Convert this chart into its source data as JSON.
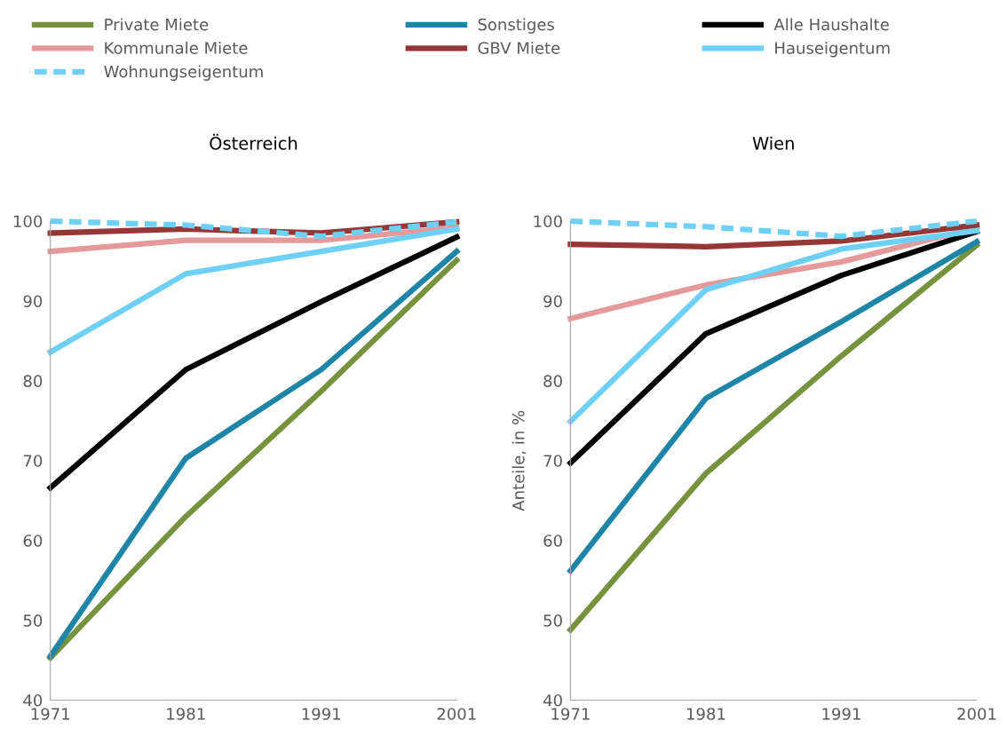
{
  "chart_data": [
    {
      "type": "line",
      "title": "Österreich",
      "x": [
        1971,
        1981,
        1991,
        2001
      ],
      "xlim": [
        1971,
        2001
      ],
      "xticks": [
        1971,
        1981,
        1991,
        2001
      ],
      "ylim": [
        40,
        100
      ],
      "yticks": [
        40,
        50,
        60,
        70,
        80,
        90,
        100
      ],
      "grid": false,
      "legend": "top",
      "marker": "none",
      "series": [
        {
          "name": "Private Miete",
          "color": "#76923c",
          "values": [
            45.3,
            63.0,
            78.7,
            95.1
          ]
        },
        {
          "name": "Sonstiges",
          "color": "#1f85a6",
          "values": [
            45.5,
            70.3,
            81.4,
            96.2
          ]
        },
        {
          "name": "Alle Haushalte",
          "color": "#000000",
          "values": [
            66.6,
            81.4,
            89.9,
            98.0
          ]
        },
        {
          "name": "Kommunale Miete",
          "color": "#e6999a",
          "values": [
            96.2,
            97.6,
            97.6,
            99.2
          ]
        },
        {
          "name": "GBV Miete",
          "color": "#953735",
          "values": [
            98.5,
            99.0,
            98.5,
            99.9
          ]
        },
        {
          "name": "Hauseigentum",
          "color": "#6fd0f6",
          "values": [
            83.6,
            93.4,
            96.2,
            99.0
          ]
        },
        {
          "name": "Wohnungseigentum",
          "color": "#6fd0f6",
          "line_style": "dashed",
          "values": [
            100.0,
            99.5,
            98.1,
            99.9
          ]
        }
      ]
    },
    {
      "type": "line",
      "title": "Wien",
      "ylabel": "Anteile, in %",
      "x": [
        1971,
        1981,
        1991,
        2001
      ],
      "xlim": [
        1971,
        2001
      ],
      "xticks": [
        1971,
        1981,
        1991,
        2001
      ],
      "ylim": [
        40,
        100
      ],
      "yticks": [
        40,
        50,
        60,
        70,
        80,
        90,
        100
      ],
      "grid": false,
      "legend": "top",
      "marker": "none",
      "series": [
        {
          "color": "#76923c",
          "values": [
            48.8,
            68.4,
            83.1,
            97.0
          ]
        },
        {
          "color": "#1f85a6",
          "values": [
            56.2,
            77.8,
            87.4,
            97.4
          ]
        },
        {
          "color": "#000000",
          "values": [
            69.7,
            85.9,
            93.2,
            98.7
          ]
        },
        {
          "color": "#e6999a",
          "values": [
            87.8,
            92.0,
            94.9,
            99.2
          ]
        },
        {
          "color": "#953735",
          "values": [
            97.1,
            96.8,
            97.5,
            99.5
          ]
        },
        {
          "color": "#6fd0f6",
          "values": [
            74.9,
            91.4,
            96.5,
            98.8
          ]
        },
        {
          "color": "#6fd0f6",
          "line_style": "dashed",
          "values": [
            100.0,
            99.3,
            98.1,
            100.0
          ]
        }
      ]
    }
  ]
}
